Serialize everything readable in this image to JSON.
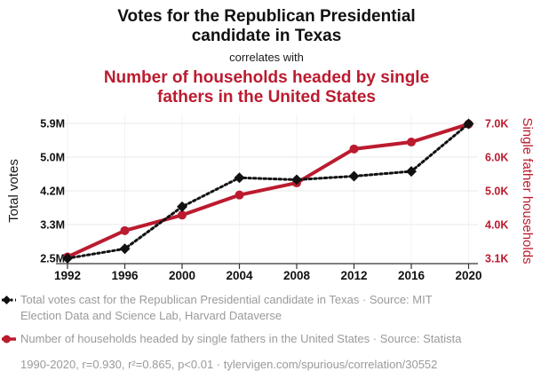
{
  "header": {
    "title": "Votes for the Republican Presidential candidate in Texas",
    "connector": "correlates with",
    "subtitle": "Number of households headed by single fathers in the United States"
  },
  "chart_data": {
    "type": "line",
    "x": [
      1992,
      1996,
      2000,
      2004,
      2008,
      2012,
      2016,
      2020
    ],
    "series": [
      {
        "name": "Total votes cast for the Republican Presidential candidate in Texas",
        "axis": "left",
        "unit": "M votes",
        "color": "#111111",
        "style": "dashed-diamond",
        "values": [
          2.5,
          2.74,
          3.8,
          4.53,
          4.48,
          4.57,
          4.69,
          5.89
        ]
      },
      {
        "name": "Number of households headed by single fathers in the United States",
        "axis": "right",
        "unit": "K households",
        "color": "#bb1b2f",
        "style": "solid-circle",
        "values": [
          3.14,
          3.9,
          4.35,
          4.93,
          5.28,
          6.26,
          6.46,
          6.98
        ]
      }
    ],
    "left_axis": {
      "label": "Total votes",
      "ticks": [
        "5.9M",
        "5.0M",
        "4.2M",
        "3.3M",
        "2.5M"
      ],
      "min": 2.5,
      "max": 5.9
    },
    "right_axis": {
      "label": "Single father households",
      "ticks": [
        "7.0K",
        "6.0K",
        "5.0K",
        "4.0K",
        "3.1K"
      ],
      "min": 3.1,
      "max": 7.0
    },
    "grid": true,
    "legend_position": "bottom"
  },
  "legend": {
    "items": [
      {
        "label": "Total votes cast for the Republican Presidential candidate in Texas · Source: MIT Election Data and Science Lab, Harvard Dataverse",
        "marker": "black-diamond-dashed-line"
      },
      {
        "label": "Number of households headed by single fathers in the United States · Source: Statista",
        "marker": "red-circle-solid-line"
      }
    ]
  },
  "footer": {
    "text": "1990-2020, r=0.930, r²=0.865, p<0.01 · tylervigen.com/spurious/correlation/30552"
  },
  "colors": {
    "accent_red": "#bb1b2f",
    "series_black": "#111111",
    "legend_gray": "#9a9a9a",
    "grid": "#e9e9e9",
    "axis_line": "#333333"
  }
}
